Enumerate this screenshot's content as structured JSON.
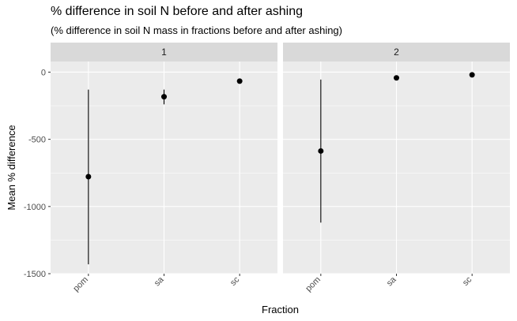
{
  "chart_data": {
    "type": "scatter",
    "title": "% difference in soil N before and after ashing",
    "subtitle": "(% difference in soil N mass in fractions before and after ashing)",
    "xlabel": "Fraction",
    "ylabel": "Mean % difference",
    "categories": [
      "pom",
      "sa",
      "sc"
    ],
    "y_ticks": [
      0,
      -500,
      -1000,
      -1500
    ],
    "y_tick_labels": [
      "0",
      "-500",
      "-1000",
      "-1500"
    ],
    "ylim": [
      -1500,
      0
    ],
    "grid": true,
    "facets": [
      {
        "label": "1",
        "points": [
          {
            "category": "pom",
            "mean": -778,
            "lower": -1430,
            "upper": -130
          },
          {
            "category": "sa",
            "mean": -183,
            "lower": -240,
            "upper": -130
          },
          {
            "category": "sc",
            "mean": -67,
            "lower": -67,
            "upper": -67
          }
        ]
      },
      {
        "label": "2",
        "points": [
          {
            "category": "pom",
            "mean": -587,
            "lower": -1120,
            "upper": -55
          },
          {
            "category": "sa",
            "mean": -43,
            "lower": -43,
            "upper": -43
          },
          {
            "category": "sc",
            "mean": -20,
            "lower": -20,
            "upper": -20
          }
        ]
      }
    ],
    "colors": {
      "panel_background": "#ebebeb",
      "strip_background": "#d9d9d9",
      "grid": "#ffffff",
      "point": "#000000"
    }
  }
}
